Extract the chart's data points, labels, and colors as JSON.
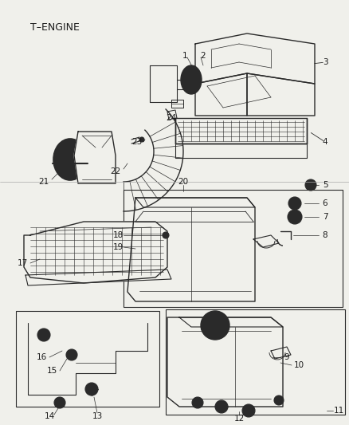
{
  "title": "T–ENGINE",
  "bg_color": "#f0f0eb",
  "line_color": "#2a2a2a",
  "text_color": "#1a1a1a",
  "fig_width": 4.38,
  "fig_height": 5.33,
  "dpi": 100
}
